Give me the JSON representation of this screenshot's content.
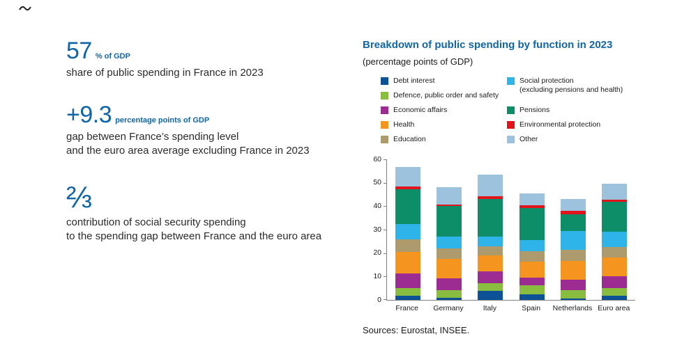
{
  "stats": [
    {
      "value": "57",
      "unit": "% of GDP",
      "desc": "share of public spending in France in 2023"
    },
    {
      "value": "+9.3",
      "unit": "percentage points of GDP",
      "desc": "gap between France’s spending level\nand the euro area average excluding France in 2023"
    },
    {
      "value": "⅔",
      "unit": "",
      "desc": "contribution of social security spending\nto the spending gap between France and the euro area"
    }
  ],
  "chart": {
    "title": "Breakdown of public spending by function in 2023",
    "subtitle": "(percentage points of GDP)",
    "source": "Sources: Eurostat, INSEE."
  },
  "chart_data": {
    "type": "bar",
    "stacked": true,
    "title": "Breakdown of public spending by function in 2023",
    "ylabel": "percentage points of GDP",
    "xlabel": "",
    "ylim": [
      0,
      60
    ],
    "yticks": [
      0,
      10,
      20,
      30,
      40,
      50,
      60
    ],
    "grid": false,
    "legend_position": "top",
    "legend_columns": [
      5,
      4
    ],
    "categories": [
      "France",
      "Germany",
      "Italy",
      "Spain",
      "Netherlands",
      "Euro area"
    ],
    "series": [
      {
        "name": "Debt interest",
        "color": "#0d5296",
        "values": [
          1.9,
          0.9,
          3.8,
          2.4,
          0.7,
          1.7
        ]
      },
      {
        "name": "Defence, public order and safety",
        "color": "#89bd40",
        "values": [
          3.2,
          3.4,
          3.2,
          3.7,
          3.4,
          3.3
        ]
      },
      {
        "name": "Economic affairs",
        "color": "#9c2c91",
        "values": [
          6.3,
          4.8,
          5.2,
          3.5,
          4.4,
          5.0
        ]
      },
      {
        "name": "Health",
        "color": "#f5941f",
        "values": [
          9.2,
          8.5,
          6.8,
          6.8,
          8.0,
          8.1
        ]
      },
      {
        "name": "Education",
        "color": "#ad9b6e",
        "values": [
          5.3,
          4.4,
          4.0,
          4.4,
          4.9,
          4.6
        ]
      },
      {
        "name": "Social protection",
        "name2": "(excluding pensions and health)",
        "color": "#2fb4e9",
        "values": [
          6.5,
          5.0,
          4.0,
          4.7,
          8.0,
          6.3
        ]
      },
      {
        "name": "Pensions",
        "color": "#0d8e68",
        "values": [
          14.8,
          13.0,
          16.2,
          13.8,
          7.3,
          12.9
        ]
      },
      {
        "name": "Environmental protection",
        "color": "#e2131b",
        "values": [
          1.1,
          0.6,
          1.2,
          1.0,
          1.4,
          0.8
        ]
      },
      {
        "name": "Other",
        "color": "#9cc2dd",
        "values": [
          8.4,
          7.6,
          9.2,
          5.2,
          5.0,
          6.8
        ]
      }
    ]
  }
}
